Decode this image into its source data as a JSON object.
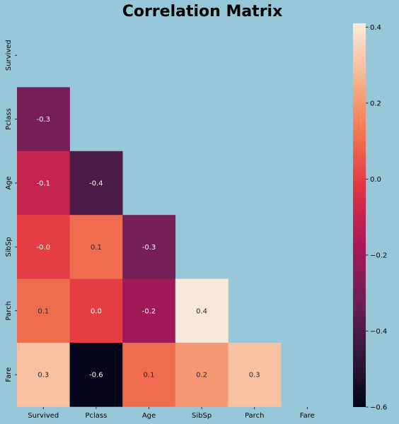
{
  "chart_data": {
    "type": "heatmap",
    "title": "Correlation Matrix",
    "xlabel": "",
    "ylabel": "",
    "x_categories": [
      "Survived",
      "Pclass",
      "Age",
      "SibSp",
      "Parch",
      "Fare"
    ],
    "y_categories": [
      "Survived",
      "Pclass",
      "Age",
      "SibSp",
      "Parch",
      "Fare"
    ],
    "mask": "upper triangle including diagonal",
    "cells": [
      {
        "row": "Pclass",
        "col": "Survived",
        "value": -0.3,
        "label": "-0.3"
      },
      {
        "row": "Age",
        "col": "Survived",
        "value": -0.1,
        "label": "-0.1"
      },
      {
        "row": "Age",
        "col": "Pclass",
        "value": -0.4,
        "label": "-0.4"
      },
      {
        "row": "SibSp",
        "col": "Survived",
        "value": -0.0,
        "label": "-0.0"
      },
      {
        "row": "SibSp",
        "col": "Pclass",
        "value": 0.1,
        "label": "0.1"
      },
      {
        "row": "SibSp",
        "col": "Age",
        "value": -0.3,
        "label": "-0.3"
      },
      {
        "row": "Parch",
        "col": "Survived",
        "value": 0.1,
        "label": "0.1"
      },
      {
        "row": "Parch",
        "col": "Pclass",
        "value": 0.0,
        "label": "0.0"
      },
      {
        "row": "Parch",
        "col": "Age",
        "value": -0.2,
        "label": "-0.2"
      },
      {
        "row": "Parch",
        "col": "SibSp",
        "value": 0.4,
        "label": "0.4"
      },
      {
        "row": "Fare",
        "col": "Survived",
        "value": 0.3,
        "label": "0.3"
      },
      {
        "row": "Fare",
        "col": "Pclass",
        "value": -0.6,
        "label": "-0.6"
      },
      {
        "row": "Fare",
        "col": "Age",
        "value": 0.1,
        "label": "0.1"
      },
      {
        "row": "Fare",
        "col": "SibSp",
        "value": 0.2,
        "label": "0.2"
      },
      {
        "row": "Fare",
        "col": "Parch",
        "value": 0.3,
        "label": "0.3"
      }
    ],
    "colorbar": {
      "min": -0.6,
      "max": 0.41,
      "ticks": [
        0.4,
        0.2,
        0.0,
        -0.2,
        -0.4,
        -0.6
      ],
      "tick_labels": [
        "0.4",
        "0.2",
        "0.0",
        "−0.2",
        "−0.4",
        "−0.6"
      ],
      "colormap": "rocket",
      "colormap_stops": [
        "#03051a",
        "#35193e",
        "#701f57",
        "#ad1759",
        "#e13342",
        "#f37651",
        "#f6b48f",
        "#faebdd"
      ]
    },
    "background_color": "#96c8da",
    "grid": false
  }
}
